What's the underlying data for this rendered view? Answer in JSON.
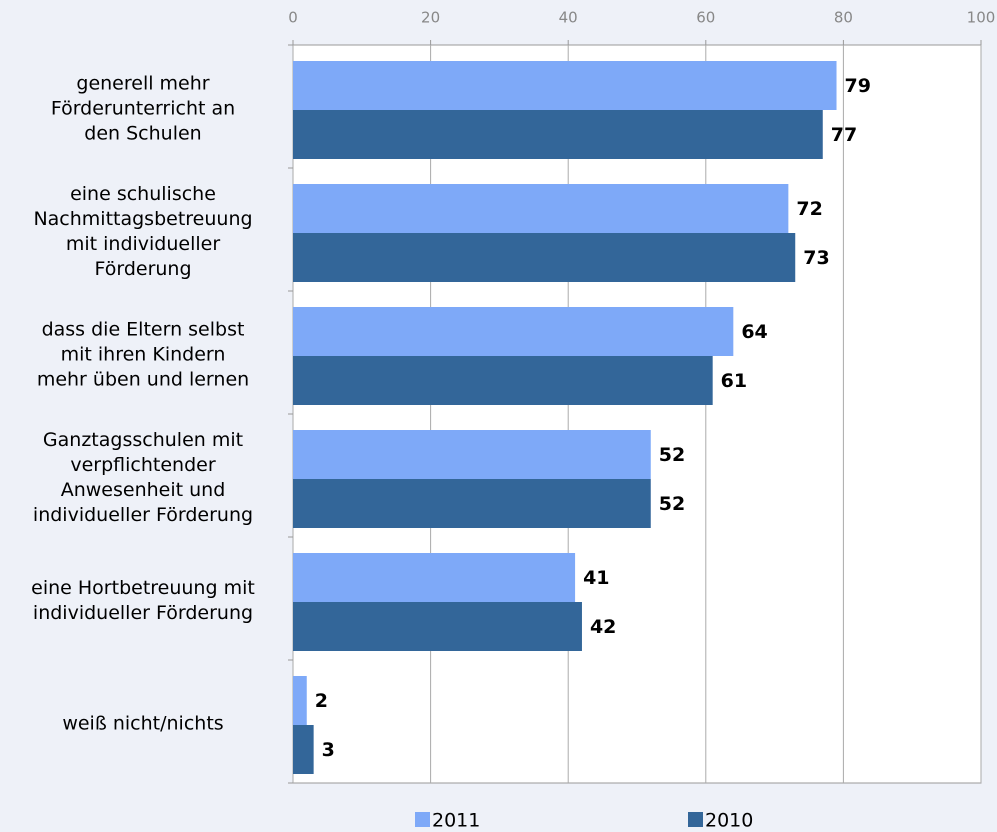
{
  "chart_data": {
    "type": "hbar",
    "categories": [
      "generell mehr\nFörderunterricht an\nden Schulen",
      "eine schulische\nNachmittagsbetreuung\nmit individueller\nFörderung",
      "dass die Eltern selbst\nmit ihren Kindern\nmehr üben und lernen",
      "Ganztagsschulen mit\nverpflichtender\nAnwesenheit und\nindividueller Förderung",
      "eine Hortbetreuung mit\nindividueller Förderung",
      "weiß nicht/nichts"
    ],
    "series": [
      {
        "name": "2011",
        "color": "#7ea9f8",
        "values": [
          79,
          72,
          64,
          52,
          41,
          2
        ]
      },
      {
        "name": "2010",
        "color": "#336699",
        "values": [
          77,
          73,
          61,
          52,
          42,
          3
        ]
      }
    ],
    "xlim": [
      0,
      100
    ],
    "xticks": [
      0,
      20,
      40,
      60,
      80,
      100
    ],
    "grid": true
  }
}
